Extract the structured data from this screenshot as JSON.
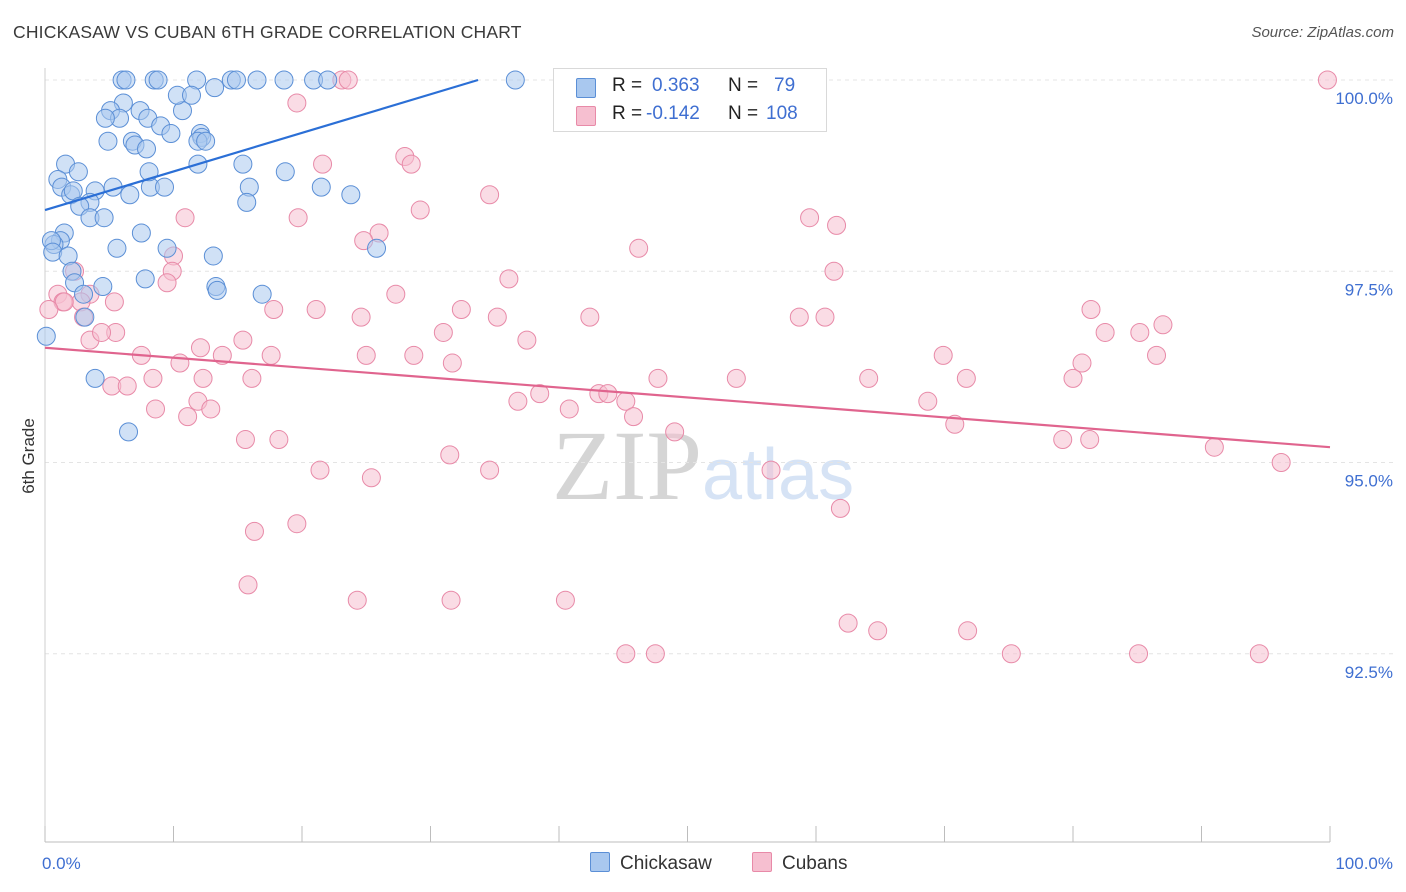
{
  "header": {
    "title": "CHICKASAW VS CUBAN 6TH GRADE CORRELATION CHART",
    "source": "Source: ZipAtlas.com"
  },
  "watermark": {
    "zip": "ZIP",
    "atlas": "atlas"
  },
  "colors": {
    "blue_fill": "#a9c8ef",
    "blue_stroke": "#5b8fd6",
    "blue_line": "#2b6fd6",
    "pink_fill": "#f6bfd0",
    "pink_stroke": "#e88aa8",
    "pink_line": "#e0648e",
    "grid": "#e4e4e4",
    "axis_label": "#3f6fd1"
  },
  "legend": {
    "rows": [
      {
        "r_label": "R =",
        "r_value": "0.363",
        "n_label": "N =",
        "n_value": "79",
        "color": "blue"
      },
      {
        "r_label": "R =",
        "r_value": "-0.142",
        "n_label": "N =",
        "n_value": "108",
        "color": "pink"
      }
    ]
  },
  "bottom_legend": {
    "items": [
      {
        "label": "Chickasaw",
        "color": "blue"
      },
      {
        "label": "Cubans",
        "color": "pink"
      }
    ]
  },
  "chart_data": {
    "type": "scatter",
    "title": "CHICKASAW VS CUBAN 6TH GRADE CORRELATION CHART",
    "xlabel": "",
    "ylabel": "6th Grade",
    "xlim": [
      0,
      100
    ],
    "ylim": [
      90.0,
      100.2
    ],
    "x_tick_labels": {
      "left": "0.0%",
      "right": "100.0%"
    },
    "y_ticks": [
      {
        "value": 100.0,
        "label": "100.0%"
      },
      {
        "value": 97.5,
        "label": "97.5%"
      },
      {
        "value": 95.0,
        "label": "95.0%"
      },
      {
        "value": 92.5,
        "label": "92.5%"
      }
    ],
    "grid": true,
    "legend_position": "top-center",
    "series": [
      {
        "name": "Chickasaw",
        "color": "blue",
        "trend": {
          "x0": 0,
          "y0": 98.3,
          "x1": 33.7,
          "y1": 100.0
        },
        "points": [
          [
            6.0,
            100.0
          ],
          [
            6.3,
            100.0
          ],
          [
            8.5,
            100.0
          ],
          [
            8.8,
            100.0
          ],
          [
            11.8,
            100.0
          ],
          [
            14.5,
            100.0
          ],
          [
            14.9,
            100.0
          ],
          [
            16.5,
            100.0
          ],
          [
            18.6,
            100.0
          ],
          [
            20.9,
            100.0
          ],
          [
            22.0,
            100.0
          ],
          [
            36.6,
            100.0
          ],
          [
            6.1,
            99.7
          ],
          [
            5.1,
            99.6
          ],
          [
            7.4,
            99.6
          ],
          [
            10.7,
            99.6
          ],
          [
            5.8,
            99.5
          ],
          [
            4.7,
            99.5
          ],
          [
            8.0,
            99.5
          ],
          [
            9.0,
            99.4
          ],
          [
            9.8,
            99.3
          ],
          [
            12.1,
            99.3
          ],
          [
            12.2,
            99.25
          ],
          [
            11.9,
            99.2
          ],
          [
            4.9,
            99.2
          ],
          [
            6.8,
            99.2
          ],
          [
            7.0,
            99.15
          ],
          [
            7.9,
            99.1
          ],
          [
            12.5,
            99.2
          ],
          [
            13.2,
            99.9
          ],
          [
            10.3,
            99.8
          ],
          [
            11.4,
            99.8
          ],
          [
            1.6,
            98.9
          ],
          [
            2.6,
            98.8
          ],
          [
            1.0,
            98.7
          ],
          [
            1.3,
            98.6
          ],
          [
            2.0,
            98.5
          ],
          [
            2.2,
            98.55
          ],
          [
            3.9,
            98.55
          ],
          [
            5.3,
            98.6
          ],
          [
            8.2,
            98.6
          ],
          [
            8.1,
            98.8
          ],
          [
            9.3,
            98.6
          ],
          [
            3.5,
            98.4
          ],
          [
            2.7,
            98.35
          ],
          [
            3.5,
            98.2
          ],
          [
            4.6,
            98.2
          ],
          [
            6.6,
            98.5
          ],
          [
            11.9,
            98.9
          ],
          [
            15.4,
            98.9
          ],
          [
            15.9,
            98.6
          ],
          [
            15.7,
            98.4
          ],
          [
            18.7,
            98.8
          ],
          [
            21.5,
            98.6
          ],
          [
            23.8,
            98.5
          ],
          [
            1.5,
            98.0
          ],
          [
            1.2,
            97.9
          ],
          [
            0.7,
            97.85
          ],
          [
            0.5,
            97.9
          ],
          [
            0.6,
            97.75
          ],
          [
            1.8,
            97.7
          ],
          [
            5.6,
            97.8
          ],
          [
            7.5,
            98.0
          ],
          [
            9.5,
            97.8
          ],
          [
            13.1,
            97.7
          ],
          [
            25.8,
            97.8
          ],
          [
            2.1,
            97.5
          ],
          [
            2.3,
            97.35
          ],
          [
            4.5,
            97.3
          ],
          [
            7.8,
            97.4
          ],
          [
            13.3,
            97.3
          ],
          [
            13.4,
            97.25
          ],
          [
            16.9,
            97.2
          ],
          [
            3.0,
            97.2
          ],
          [
            3.1,
            96.9
          ],
          [
            0.1,
            96.65
          ],
          [
            3.9,
            96.1
          ],
          [
            6.5,
            95.4
          ]
        ]
      },
      {
        "name": "Cubans",
        "color": "pink",
        "trend": {
          "x0": 0,
          "y0": 96.5,
          "x1": 100,
          "y1": 95.2
        },
        "points": [
          [
            23.1,
            100.0
          ],
          [
            23.6,
            100.0
          ],
          [
            99.8,
            100.0
          ],
          [
            19.6,
            99.7
          ],
          [
            28.0,
            99.0
          ],
          [
            28.5,
            98.9
          ],
          [
            21.6,
            98.9
          ],
          [
            34.6,
            98.5
          ],
          [
            29.2,
            98.3
          ],
          [
            19.7,
            98.2
          ],
          [
            10.9,
            98.2
          ],
          [
            61.6,
            98.1
          ],
          [
            59.5,
            98.2
          ],
          [
            26.0,
            98.0
          ],
          [
            24.8,
            97.9
          ],
          [
            46.2,
            97.8
          ],
          [
            2.3,
            97.5
          ],
          [
            10.0,
            97.7
          ],
          [
            9.9,
            97.5
          ],
          [
            9.5,
            97.35
          ],
          [
            5.4,
            97.1
          ],
          [
            3.5,
            97.2
          ],
          [
            1.0,
            97.2
          ],
          [
            2.8,
            97.1
          ],
          [
            3.0,
            96.9
          ],
          [
            1.4,
            97.1
          ],
          [
            1.5,
            97.1
          ],
          [
            0.3,
            97.0
          ],
          [
            17.8,
            97.0
          ],
          [
            21.1,
            97.0
          ],
          [
            24.6,
            96.9
          ],
          [
            27.3,
            97.2
          ],
          [
            36.1,
            97.4
          ],
          [
            32.4,
            97.0
          ],
          [
            35.2,
            96.9
          ],
          [
            42.4,
            96.9
          ],
          [
            5.5,
            96.7
          ],
          [
            3.5,
            96.6
          ],
          [
            4.4,
            96.7
          ],
          [
            15.4,
            96.6
          ],
          [
            37.5,
            96.6
          ],
          [
            31.0,
            96.7
          ],
          [
            53.8,
            96.1
          ],
          [
            58.7,
            96.9
          ],
          [
            61.4,
            97.5
          ],
          [
            64.1,
            96.1
          ],
          [
            69.9,
            96.4
          ],
          [
            71.7,
            96.1
          ],
          [
            80.0,
            96.1
          ],
          [
            86.5,
            96.4
          ],
          [
            85.2,
            96.7
          ],
          [
            87.0,
            96.8
          ],
          [
            82.5,
            96.7
          ],
          [
            81.4,
            97.0
          ],
          [
            60.7,
            96.9
          ],
          [
            7.5,
            96.4
          ],
          [
            8.4,
            96.1
          ],
          [
            12.1,
            96.5
          ],
          [
            13.8,
            96.4
          ],
          [
            17.6,
            96.4
          ],
          [
            25.0,
            96.4
          ],
          [
            28.7,
            96.4
          ],
          [
            31.7,
            96.3
          ],
          [
            10.5,
            96.3
          ],
          [
            12.3,
            96.1
          ],
          [
            16.1,
            96.1
          ],
          [
            18.2,
            95.3
          ],
          [
            5.2,
            96.0
          ],
          [
            6.4,
            96.0
          ],
          [
            11.9,
            95.8
          ],
          [
            8.6,
            95.7
          ],
          [
            12.9,
            95.7
          ],
          [
            36.8,
            95.8
          ],
          [
            38.5,
            95.9
          ],
          [
            40.8,
            95.7
          ],
          [
            43.1,
            95.9
          ],
          [
            45.2,
            95.8
          ],
          [
            47.7,
            96.1
          ],
          [
            43.8,
            95.9
          ],
          [
            45.8,
            95.6
          ],
          [
            49.0,
            95.4
          ],
          [
            80.7,
            96.3
          ],
          [
            79.2,
            95.3
          ],
          [
            68.7,
            95.8
          ],
          [
            70.8,
            95.5
          ],
          [
            81.3,
            95.3
          ],
          [
            91.0,
            95.2
          ],
          [
            96.2,
            95.0
          ],
          [
            11.1,
            95.6
          ],
          [
            15.6,
            95.3
          ],
          [
            21.4,
            94.9
          ],
          [
            25.4,
            94.8
          ],
          [
            31.5,
            95.1
          ],
          [
            34.6,
            94.9
          ],
          [
            56.5,
            94.9
          ],
          [
            61.9,
            94.4
          ],
          [
            19.6,
            94.2
          ],
          [
            16.3,
            94.1
          ],
          [
            15.8,
            93.4
          ],
          [
            24.3,
            93.2
          ],
          [
            31.6,
            93.2
          ],
          [
            40.5,
            93.2
          ],
          [
            47.5,
            92.5
          ],
          [
            45.2,
            92.5
          ],
          [
            75.2,
            92.5
          ],
          [
            85.1,
            92.5
          ],
          [
            94.5,
            92.5
          ],
          [
            62.5,
            92.9
          ],
          [
            64.8,
            92.8
          ],
          [
            71.8,
            92.8
          ]
        ]
      }
    ]
  }
}
